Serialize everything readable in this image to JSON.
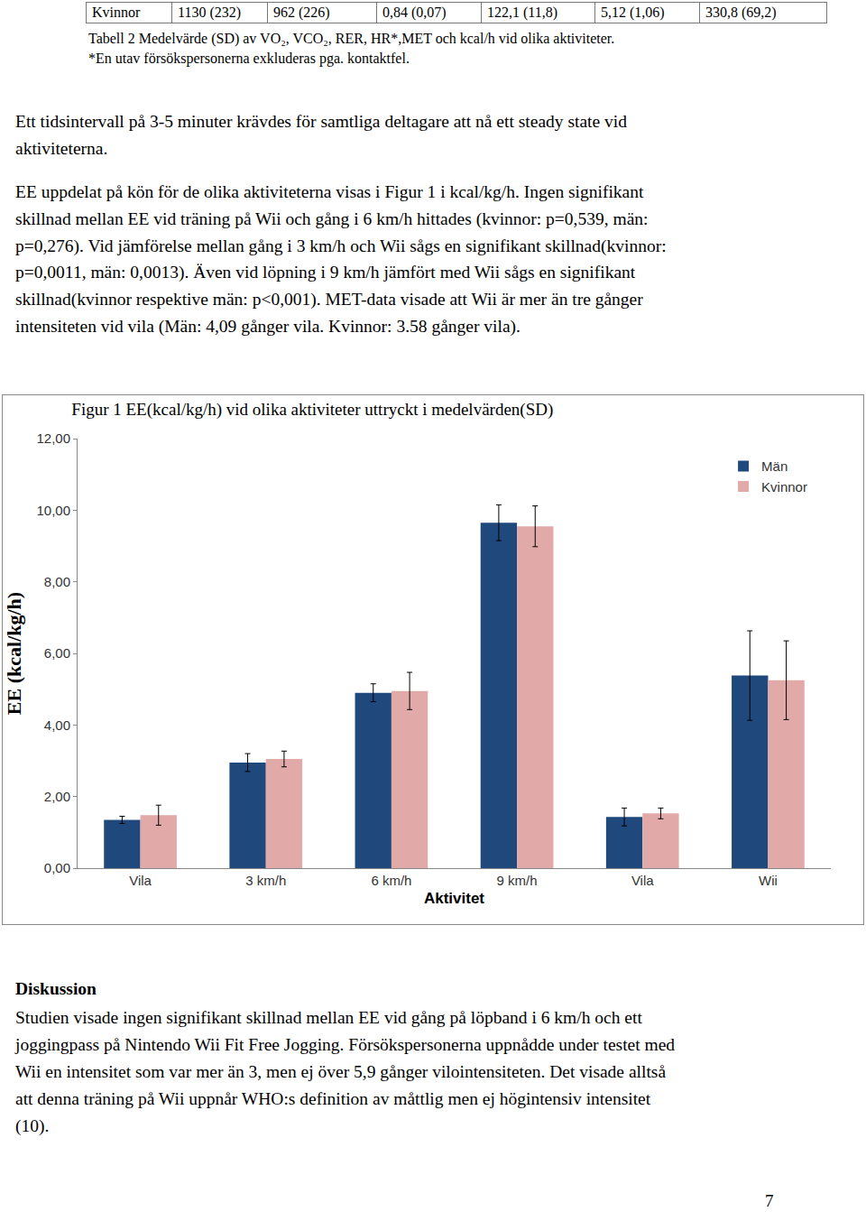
{
  "table_row": [
    "Kvinnor",
    "1130 (232)",
    "962 (226)",
    "0,84 (0,07)",
    "122,1 (11,8)",
    "5,12 (1,06)",
    "330,8 (69,2)"
  ],
  "caption": [
    "Tabell 2 Medelvärde (SD) av VO₂, VCO₂, RER, HR*,MET och kcal/h vid olika aktiviteter.",
    "*En utav försökspersonerna exkluderas pga. kontaktfel."
  ],
  "paragraphs": [
    [
      "Ett tidsintervall på 3-5 minuter krävdes för samtliga deltagare att nå ett steady state vid",
      "aktiviteterna."
    ],
    [
      "EE uppdelat på kön för de olika aktiviteterna visas i Figur 1 i kcal/kg/h. Ingen signifikant",
      "skillnad mellan EE vid träning på Wii och gång i 6 km/h hittades (kvinnor: p=0,539, män:",
      "p=0,276). Vid jämförelse mellan gång i 3 km/h och Wii sågs en signifikant skillnad(kvinnor:",
      "p=0,0011, män: 0,0013). Även vid löpning i 9 km/h jämfört med Wii sågs en signifikant",
      "skillnad(kvinnor respektive män: p<0,001). MET-data visade att Wii är mer än tre gånger",
      "intensiteten vid vila (Män: 4,09 gånger vila. Kvinnor: 3.58 gånger vila)."
    ]
  ],
  "chart_data": {
    "type": "bar",
    "title": "Figur 1 EE(kcal/kg/h) vid olika aktiviteter uttryckt i medelvärden(SD)",
    "x_label": "Aktivitet",
    "y_label": "EE (kcal/kg/h)",
    "categories": [
      "Vila",
      "3 km/h",
      "6 km/h",
      "9 km/h",
      "Vila",
      "Wii"
    ],
    "series": [
      {
        "name": "Män",
        "color": "#1f497d",
        "values": [
          1.35,
          2.95,
          4.9,
          9.65,
          1.43,
          5.38
        ],
        "error": [
          0.1,
          0.25,
          0.25,
          0.5,
          0.25,
          1.25
        ]
      },
      {
        "name": "Kvinnor",
        "color": "#e2a9a9",
        "values": [
          1.48,
          3.05,
          4.95,
          9.55,
          1.53,
          5.25
        ],
        "error": [
          0.28,
          0.22,
          0.52,
          0.57,
          0.15,
          1.1
        ]
      }
    ],
    "ylim": [
      0,
      12
    ],
    "yticks": [
      {
        "value": 0,
        "label": "0,00"
      },
      {
        "value": 2,
        "label": "2,00"
      },
      {
        "value": 4,
        "label": "4,00"
      },
      {
        "value": 6,
        "label": "6,00"
      },
      {
        "value": 8,
        "label": "8,00"
      },
      {
        "value": 10,
        "label": "10,00"
      },
      {
        "value": 12,
        "label": "12,00"
      }
    ],
    "grid": false,
    "legend": "upper right"
  },
  "discussion": {
    "heading": "Diskussion",
    "lines": [
      "Studien visade ingen signifikant skillnad mellan EE vid gång på löpband i 6 km/h och ett",
      "joggingpass på Nintendo Wii Fit Free Jogging. Försökspersonerna uppnådde under testet med",
      "Wii en intensitet som var mer än 3, men ej över 5,9 gånger vilointensiteten. Det visade alltså",
      "att denna träning på Wii uppnår WHO:s definition av måttlig men ej högintensiv intensitet",
      "(10)."
    ]
  },
  "page_number": "7"
}
